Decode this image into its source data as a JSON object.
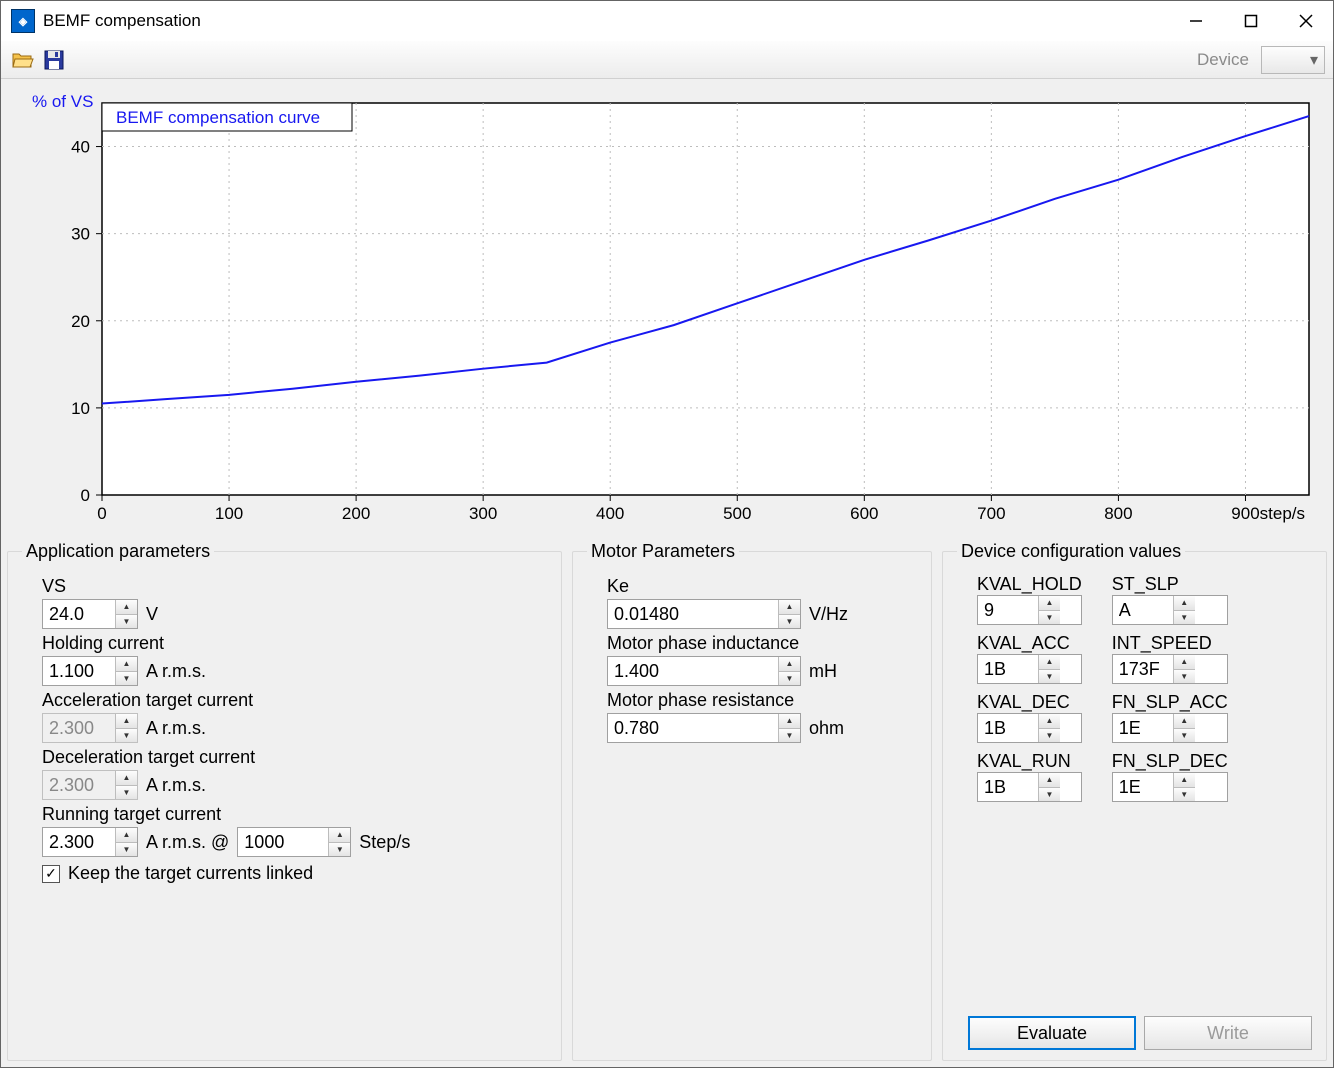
{
  "window": {
    "title": "BEMF compensation"
  },
  "toolbar": {
    "device_label": "Device"
  },
  "chart": {
    "type": "line",
    "title": "BEMF compensation curve",
    "title_color": "#1818f0",
    "ylabel": "% of VS",
    "xlabel": "step/s",
    "label_color": "#1818f0",
    "line_color": "#1818f0",
    "line_width": 2,
    "background_color": "#ffffff",
    "border_color": "#000000",
    "grid_color": "#bdbdbd",
    "grid_dash": "2 4",
    "xlim": [
      0,
      950
    ],
    "ylim": [
      0,
      45
    ],
    "xticks": [
      0,
      100,
      200,
      300,
      400,
      500,
      600,
      700,
      800,
      900
    ],
    "yticks": [
      0,
      10,
      20,
      30,
      40
    ],
    "tick_fontsize": 17,
    "x": [
      0,
      50,
      100,
      150,
      200,
      250,
      300,
      350,
      400,
      450,
      500,
      550,
      600,
      650,
      700,
      750,
      800,
      850,
      900,
      950
    ],
    "y": [
      10.5,
      11.0,
      11.5,
      12.2,
      13.0,
      13.7,
      14.5,
      15.2,
      17.5,
      19.5,
      22.0,
      24.5,
      27.0,
      29.2,
      31.5,
      34.0,
      36.2,
      38.8,
      41.2,
      43.5
    ]
  },
  "app_params": {
    "legend": "Application parameters",
    "vs": {
      "label": "VS",
      "value": "24.0",
      "unit": "V"
    },
    "holding": {
      "label": "Holding current",
      "value": "1.100",
      "unit": "A r.m.s."
    },
    "accel": {
      "label": "Acceleration target current",
      "value": "2.300",
      "unit": "A r.m.s.",
      "disabled": true
    },
    "decel": {
      "label": "Deceleration target current",
      "value": "2.300",
      "unit": "A r.m.s.",
      "disabled": true
    },
    "running": {
      "label": "Running target current",
      "value": "2.300",
      "unit": "A r.m.s. @",
      "speed": "1000",
      "speed_unit": "Step/s"
    },
    "link_checkbox": {
      "label": "Keep the target currents linked",
      "checked": true
    }
  },
  "motor_params": {
    "legend": "Motor Parameters",
    "ke": {
      "label": "Ke",
      "value": "0.01480",
      "unit": "V/Hz"
    },
    "inductance": {
      "label": "Motor phase inductance",
      "value": "1.400",
      "unit": "mH"
    },
    "resistance": {
      "label": "Motor phase resistance",
      "value": "0.780",
      "unit": "ohm"
    }
  },
  "device_config": {
    "legend": "Device configuration values",
    "left": [
      {
        "label": "KVAL_HOLD",
        "value": "9"
      },
      {
        "label": "KVAL_ACC",
        "value": "1B"
      },
      {
        "label": "KVAL_DEC",
        "value": "1B"
      },
      {
        "label": "KVAL_RUN",
        "value": "1B"
      }
    ],
    "right": [
      {
        "label": "ST_SLP",
        "value": "A"
      },
      {
        "label": "INT_SPEED",
        "value": "173F"
      },
      {
        "label": "FN_SLP_ACC",
        "value": "1E"
      },
      {
        "label": "FN_SLP_DEC",
        "value": "1E"
      }
    ],
    "buttons": {
      "evaluate": "Evaluate",
      "write": "Write"
    }
  }
}
